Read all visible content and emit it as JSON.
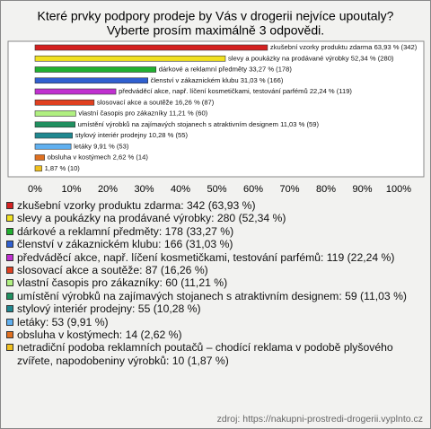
{
  "chart_data": {
    "type": "bar",
    "orientation": "horizontal",
    "title": "Které prvky podpory prodeje by Vás v drogerii nejvíce upoutaly?",
    "subtitle": "Vyberte prosím maximálně 3 odpovědi.",
    "categories": [
      "zkušební vzorky produktu zdarma",
      "slevy a poukázky na prodávané výrobky",
      "dárkové a reklamní předměty",
      "členství v zákaznickém klubu",
      "předváděcí akce, např. líčení kosmetičkami, testování parfémů",
      "slosovací akce a soutěže",
      "vlastní časopis pro zákazníky",
      "umístění výrobků na zajímavých stojanech s atraktivním designem",
      "stylový interiér prodejny",
      "letáky",
      "obsluha v kostýmech",
      null
    ],
    "values": [
      63.93,
      52.34,
      33.27,
      31.03,
      22.24,
      16.26,
      11.21,
      11.03,
      10.28,
      9.91,
      2.62,
      1.87
    ],
    "value_labels": [
      "63,93 % (342)",
      "52,34 % (280)",
      "33,27 % (178)",
      "31,03 % (166)",
      "22,24 % (119)",
      "16,26 % (87)",
      "11,21 % (60)",
      "11,03 % (59)",
      "10,28 % (55)",
      "9,91 % (53)",
      "2,62 % (14)",
      "1,87 % (10)"
    ],
    "colors": [
      "#d42020",
      "#f0e020",
      "#20b030",
      "#3060d0",
      "#c030d0",
      "#e04020",
      "#b0f080",
      "#209060",
      "#208890",
      "#60b0f0",
      "#e07020",
      "#f0c020"
    ],
    "legend": [
      "zkušební vzorky produktu zdarma: 342 (63,93 %)",
      "slevy a poukázky na prodávané výrobky: 280 (52,34 %)",
      "dárkové a reklamní předměty: 178 (33,27 %)",
      "členství v zákaznickém klubu: 166 (31,03 %)",
      "předváděcí akce, např. líčení kosmetičkami, testování parfémů: 119 (22,24 %)",
      "slosovací akce a soutěže: 87 (16,26 %)",
      "vlastní časopis pro zákazníky: 60 (11,21 %)",
      "umístění výrobků na zajímavých stojanech s atraktivním designem: 59 (11,03 %)",
      "stylový interiér prodejny: 55 (10,28 %)",
      "letáky: 53 (9,91 %)",
      "obsluha v kostýmech: 14 (2,62 %)",
      "netradiční podoba reklamních poutačů – chodící reklama v podobě plyšového zvířete, napodobeniny výrobků: 10 (1,87 %)"
    ],
    "xlim": [
      0,
      100
    ],
    "xticks": [
      {
        "value": 0,
        "label": "0%"
      },
      {
        "value": 10,
        "label": "10%"
      },
      {
        "value": 20,
        "label": "20%"
      },
      {
        "value": 30,
        "label": "30%"
      },
      {
        "value": 40,
        "label": "40%"
      },
      {
        "value": 50,
        "label": "50%"
      },
      {
        "value": 60,
        "label": "60%"
      },
      {
        "value": 70,
        "label": "70%"
      },
      {
        "value": 80,
        "label": "80%"
      },
      {
        "value": 90,
        "label": "90%"
      },
      {
        "value": 100,
        "label": "100%"
      }
    ],
    "source": "zdroj: https://nakupni-prostredi-drogerii.vyplnto.cz"
  }
}
